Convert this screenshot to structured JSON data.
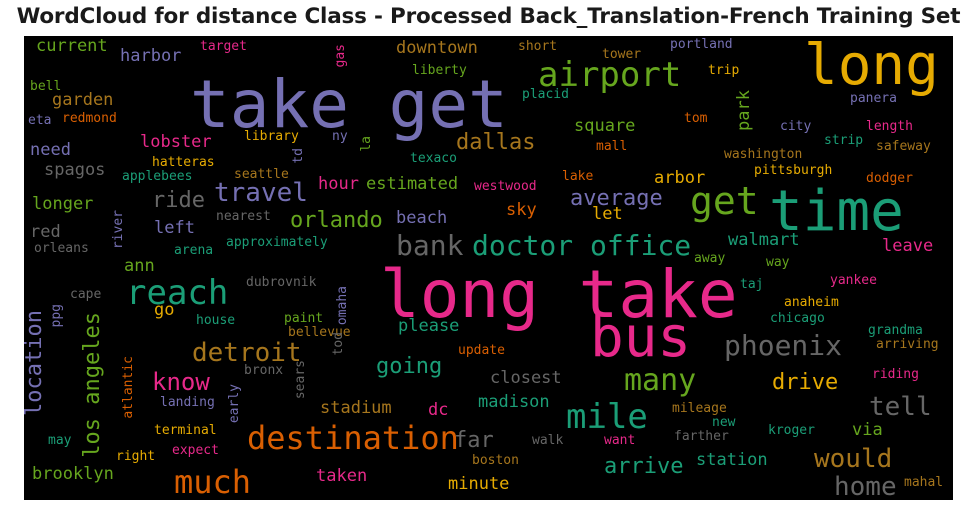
{
  "title": "WordCloud for distance Class - Processed Back_Translation-French Training Set",
  "palette": {
    "pink": "#e7298a",
    "purple": "#7570b3",
    "orange": "#d95f02",
    "teal": "#1b9e77",
    "green": "#66a61e",
    "gold": "#e6ab02",
    "brown": "#a6761d",
    "gray": "#666666"
  },
  "words": [
    {
      "text": "long take",
      "color": "#e7298a"
    },
    {
      "text": "take get",
      "color": "#7570b3"
    },
    {
      "text": "long",
      "color": "#e6ab02"
    },
    {
      "text": "time",
      "color": "#1b9e77"
    },
    {
      "text": "bus",
      "color": "#e7298a"
    },
    {
      "text": "airport",
      "color": "#66a61e"
    },
    {
      "text": "get",
      "color": "#66a61e"
    },
    {
      "text": "doctor office",
      "color": "#1b9e77"
    },
    {
      "text": "bank",
      "color": "#666666"
    },
    {
      "text": "reach",
      "color": "#1b9e77"
    },
    {
      "text": "destination",
      "color": "#d95f02"
    },
    {
      "text": "mile",
      "color": "#1b9e77"
    },
    {
      "text": "phoenix",
      "color": "#666666"
    },
    {
      "text": "detroit",
      "color": "#a6761d"
    },
    {
      "text": "much",
      "color": "#d95f02"
    },
    {
      "text": "many",
      "color": "#66a61e"
    },
    {
      "text": "would",
      "color": "#a6761d"
    },
    {
      "text": "travel",
      "color": "#7570b3"
    },
    {
      "text": "know",
      "color": "#e7298a"
    },
    {
      "text": "tell",
      "color": "#666666"
    },
    {
      "text": "home",
      "color": "#666666"
    },
    {
      "text": "arrive",
      "color": "#1b9e77"
    },
    {
      "text": "dallas",
      "color": "#a6761d"
    },
    {
      "text": "orlando",
      "color": "#66a61e"
    },
    {
      "text": "average",
      "color": "#7570b3"
    },
    {
      "text": "drive",
      "color": "#e6ab02"
    },
    {
      "text": "los angeles",
      "color": "#66a61e"
    },
    {
      "text": "location",
      "color": "#7570b3"
    },
    {
      "text": "going",
      "color": "#1b9e77"
    },
    {
      "text": "ride",
      "color": "#666666"
    },
    {
      "text": "far",
      "color": "#666666"
    },
    {
      "text": "current",
      "color": "#66a61e"
    },
    {
      "text": "harbor",
      "color": "#7570b3"
    },
    {
      "text": "downtown",
      "color": "#a6761d"
    },
    {
      "text": "garden",
      "color": "#a6761d"
    },
    {
      "text": "lobster",
      "color": "#e7298a"
    },
    {
      "text": "square",
      "color": "#66a61e"
    },
    {
      "text": "park",
      "color": "#66a61e"
    },
    {
      "text": "need",
      "color": "#7570b3"
    },
    {
      "text": "spagos",
      "color": "#666666"
    },
    {
      "text": "estimated",
      "color": "#66a61e"
    },
    {
      "text": "hour",
      "color": "#e7298a"
    },
    {
      "text": "longer",
      "color": "#66a61e"
    },
    {
      "text": "left",
      "color": "#7570b3"
    },
    {
      "text": "beach",
      "color": "#7570b3"
    },
    {
      "text": "sky",
      "color": "#d95f02"
    },
    {
      "text": "let",
      "color": "#e6ab02"
    },
    {
      "text": "arbor",
      "color": "#e6ab02"
    },
    {
      "text": "walmart",
      "color": "#1b9e77"
    },
    {
      "text": "leave",
      "color": "#e7298a"
    },
    {
      "text": "red",
      "color": "#666666"
    },
    {
      "text": "ann",
      "color": "#66a61e"
    },
    {
      "text": "station",
      "color": "#1b9e77"
    },
    {
      "text": "minute",
      "color": "#e6ab02"
    },
    {
      "text": "taken",
      "color": "#e7298a"
    },
    {
      "text": "brooklyn",
      "color": "#66a61e"
    },
    {
      "text": "stadium",
      "color": "#a6761d"
    },
    {
      "text": "dc",
      "color": "#e7298a"
    },
    {
      "text": "madison",
      "color": "#1b9e77"
    },
    {
      "text": "closest",
      "color": "#666666"
    },
    {
      "text": "please",
      "color": "#1b9e77"
    },
    {
      "text": "via",
      "color": "#66a61e"
    },
    {
      "text": "go",
      "color": "#e6ab02"
    },
    {
      "text": "target",
      "color": "#e7298a"
    },
    {
      "text": "short",
      "color": "#a6761d"
    },
    {
      "text": "tower",
      "color": "#a6761d"
    },
    {
      "text": "portland",
      "color": "#7570b3"
    },
    {
      "text": "trip",
      "color": "#e6ab02"
    },
    {
      "text": "gas",
      "color": "#e7298a"
    },
    {
      "text": "liberty",
      "color": "#66a61e"
    },
    {
      "text": "bell",
      "color": "#66a61e"
    },
    {
      "text": "eta",
      "color": "#7570b3"
    },
    {
      "text": "redmond",
      "color": "#d95f02"
    },
    {
      "text": "placid",
      "color": "#1b9e77"
    },
    {
      "text": "panera",
      "color": "#7570b3"
    },
    {
      "text": "tom",
      "color": "#d95f02"
    },
    {
      "text": "city",
      "color": "#7570b3"
    },
    {
      "text": "length",
      "color": "#e7298a"
    },
    {
      "text": "strip",
      "color": "#1b9e77"
    },
    {
      "text": "safeway",
      "color": "#a6761d"
    },
    {
      "text": "library",
      "color": "#e6ab02"
    },
    {
      "text": "ny",
      "color": "#7570b3"
    },
    {
      "text": "la",
      "color": "#66a61e"
    },
    {
      "text": "mall",
      "color": "#d95f02"
    },
    {
      "text": "washington",
      "color": "#a6761d"
    },
    {
      "text": "pittsburgh",
      "color": "#e6ab02"
    },
    {
      "text": "dodger",
      "color": "#d95f02"
    },
    {
      "text": "hatteras",
      "color": "#e6ab02"
    },
    {
      "text": "applebees",
      "color": "#1b9e77"
    },
    {
      "text": "seattle",
      "color": "#a6761d"
    },
    {
      "text": "td",
      "color": "#7570b3"
    },
    {
      "text": "texaco",
      "color": "#1b9e77"
    },
    {
      "text": "westwood",
      "color": "#e7298a"
    },
    {
      "text": "lake",
      "color": "#d95f02"
    },
    {
      "text": "nearest",
      "color": "#666666"
    },
    {
      "text": "river",
      "color": "#7570b3"
    },
    {
      "text": "orleans",
      "color": "#666666"
    },
    {
      "text": "arena",
      "color": "#1b9e77"
    },
    {
      "text": "approximately",
      "color": "#1b9e77"
    },
    {
      "text": "away",
      "color": "#66a61e"
    },
    {
      "text": "way",
      "color": "#66a61e"
    },
    {
      "text": "yankee",
      "color": "#e7298a"
    },
    {
      "text": "taj",
      "color": "#1b9e77"
    },
    {
      "text": "anaheim",
      "color": "#e6ab02"
    },
    {
      "text": "chicago",
      "color": "#1b9e77"
    },
    {
      "text": "grandma",
      "color": "#1b9e77"
    },
    {
      "text": "arriving",
      "color": "#a6761d"
    },
    {
      "text": "cape",
      "color": "#666666"
    },
    {
      "text": "ppg",
      "color": "#7570b3"
    },
    {
      "text": "dubrovnik",
      "color": "#666666"
    },
    {
      "text": "house",
      "color": "#1b9e77"
    },
    {
      "text": "paint",
      "color": "#66a61e"
    },
    {
      "text": "bellevue",
      "color": "#a6761d"
    },
    {
      "text": "omaha",
      "color": "#7570b3"
    },
    {
      "text": "tod",
      "color": "#666666"
    },
    {
      "text": "update",
      "color": "#d95f02"
    },
    {
      "text": "riding",
      "color": "#e7298a"
    },
    {
      "text": "atlantic",
      "color": "#d95f02"
    },
    {
      "text": "bronx",
      "color": "#666666"
    },
    {
      "text": "sears",
      "color": "#666666"
    },
    {
      "text": "landing",
      "color": "#7570b3"
    },
    {
      "text": "early",
      "color": "#7570b3"
    },
    {
      "text": "terminal",
      "color": "#e6ab02"
    },
    {
      "text": "mileage",
      "color": "#a6761d"
    },
    {
      "text": "new",
      "color": "#1b9e77"
    },
    {
      "text": "kroger",
      "color": "#1b9e77"
    },
    {
      "text": "may",
      "color": "#1b9e77"
    },
    {
      "text": "right",
      "color": "#e6ab02"
    },
    {
      "text": "expect",
      "color": "#e7298a"
    },
    {
      "text": "walk",
      "color": "#666666"
    },
    {
      "text": "want",
      "color": "#e7298a"
    },
    {
      "text": "farther",
      "color": "#666666"
    },
    {
      "text": "boston",
      "color": "#a6761d"
    },
    {
      "text": "mahal",
      "color": "#a6761d"
    }
  ]
}
